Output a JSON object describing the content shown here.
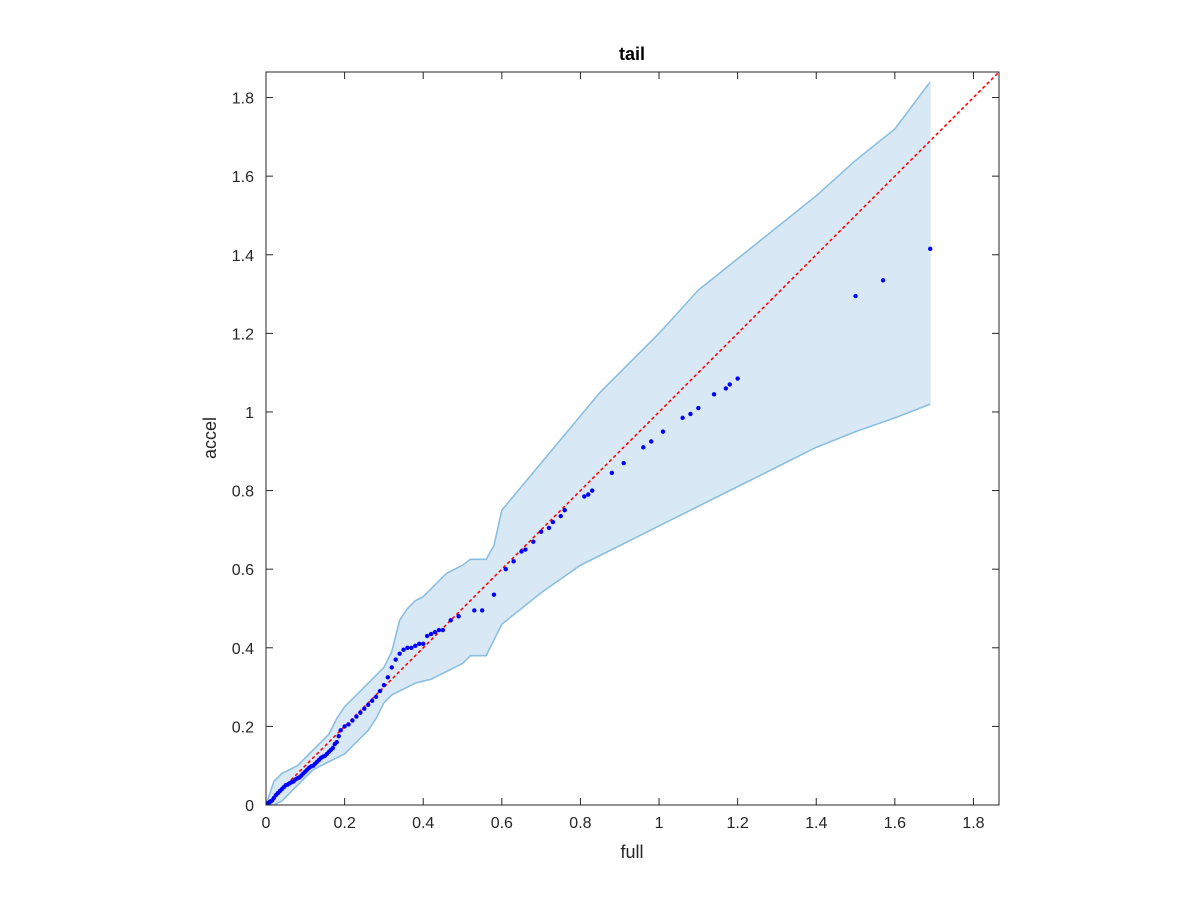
{
  "chart_data": {
    "type": "scatter",
    "title": "tail",
    "xlabel": "full",
    "ylabel": "accel",
    "xlim": [
      0,
      1.865
    ],
    "ylim": [
      0,
      1.865
    ],
    "xticks": [
      0,
      0.2,
      0.4,
      0.6,
      0.8,
      1,
      1.2,
      1.4,
      1.6,
      1.8
    ],
    "yticks": [
      0,
      0.2,
      0.4,
      0.6,
      0.8,
      1,
      1.2,
      1.4,
      1.6,
      1.8
    ],
    "xtick_labels": [
      "0",
      "0.2",
      "0.4",
      "0.6",
      "0.8",
      "1",
      "1.2",
      "1.4",
      "1.6",
      "1.8"
    ],
    "ytick_labels": [
      "0",
      "0.2",
      "0.4",
      "0.6",
      "0.8",
      "1",
      "1.2",
      "1.4",
      "1.6",
      "1.8"
    ],
    "grid": false,
    "box": true,
    "colors": {
      "points": "#0000ff",
      "reference_line": "#ff0000",
      "band_fill": "#d9e8f5",
      "band_edge": "#8bbfe0",
      "axis": "#262626"
    },
    "reference_line": {
      "style": "dotted",
      "from": [
        0,
        0
      ],
      "to": [
        1.865,
        1.865
      ]
    },
    "band": {
      "upper": [
        [
          0,
          0
        ],
        [
          0.01,
          0.03
        ],
        [
          0.02,
          0.06
        ],
        [
          0.04,
          0.08
        ],
        [
          0.06,
          0.09
        ],
        [
          0.08,
          0.1
        ],
        [
          0.1,
          0.12
        ],
        [
          0.12,
          0.14
        ],
        [
          0.14,
          0.16
        ],
        [
          0.16,
          0.18
        ],
        [
          0.18,
          0.22
        ],
        [
          0.2,
          0.25
        ],
        [
          0.22,
          0.27
        ],
        [
          0.24,
          0.29
        ],
        [
          0.26,
          0.31
        ],
        [
          0.28,
          0.33
        ],
        [
          0.3,
          0.35
        ],
        [
          0.32,
          0.39
        ],
        [
          0.34,
          0.47
        ],
        [
          0.36,
          0.5
        ],
        [
          0.38,
          0.52
        ],
        [
          0.4,
          0.53
        ],
        [
          0.42,
          0.55
        ],
        [
          0.44,
          0.57
        ],
        [
          0.46,
          0.59
        ],
        [
          0.48,
          0.6
        ],
        [
          0.5,
          0.61
        ],
        [
          0.52,
          0.625
        ],
        [
          0.56,
          0.625
        ],
        [
          0.58,
          0.66
        ],
        [
          0.6,
          0.75
        ],
        [
          0.65,
          0.81
        ],
        [
          0.7,
          0.87
        ],
        [
          0.75,
          0.93
        ],
        [
          0.8,
          0.99
        ],
        [
          0.85,
          1.05
        ],
        [
          0.9,
          1.1
        ],
        [
          1.0,
          1.2
        ],
        [
          1.1,
          1.31
        ],
        [
          1.2,
          1.39
        ],
        [
          1.3,
          1.47
        ],
        [
          1.4,
          1.55
        ],
        [
          1.5,
          1.64
        ],
        [
          1.6,
          1.72
        ],
        [
          1.69,
          1.84
        ]
      ],
      "lower": [
        [
          0,
          0
        ],
        [
          0.02,
          0
        ],
        [
          0.04,
          0.01
        ],
        [
          0.06,
          0.03
        ],
        [
          0.08,
          0.05
        ],
        [
          0.1,
          0.07
        ],
        [
          0.12,
          0.09
        ],
        [
          0.14,
          0.1
        ],
        [
          0.16,
          0.11
        ],
        [
          0.18,
          0.12
        ],
        [
          0.2,
          0.13
        ],
        [
          0.22,
          0.15
        ],
        [
          0.24,
          0.17
        ],
        [
          0.26,
          0.19
        ],
        [
          0.28,
          0.22
        ],
        [
          0.3,
          0.26
        ],
        [
          0.32,
          0.28
        ],
        [
          0.34,
          0.29
        ],
        [
          0.36,
          0.3
        ],
        [
          0.38,
          0.31
        ],
        [
          0.4,
          0.315
        ],
        [
          0.42,
          0.32
        ],
        [
          0.44,
          0.33
        ],
        [
          0.46,
          0.34
        ],
        [
          0.48,
          0.35
        ],
        [
          0.5,
          0.36
        ],
        [
          0.52,
          0.38
        ],
        [
          0.56,
          0.38
        ],
        [
          0.58,
          0.42
        ],
        [
          0.6,
          0.46
        ],
        [
          0.7,
          0.54
        ],
        [
          0.8,
          0.61
        ],
        [
          0.9,
          0.66
        ],
        [
          1.0,
          0.71
        ],
        [
          1.1,
          0.76
        ],
        [
          1.2,
          0.81
        ],
        [
          1.3,
          0.86
        ],
        [
          1.4,
          0.91
        ],
        [
          1.5,
          0.95
        ],
        [
          1.6,
          0.985
        ],
        [
          1.69,
          1.02
        ]
      ]
    },
    "points": [
      [
        0.002,
        0.002
      ],
      [
        0.004,
        0.004
      ],
      [
        0.006,
        0.005
      ],
      [
        0.008,
        0.006
      ],
      [
        0.01,
        0.008
      ],
      [
        0.013,
        0.01
      ],
      [
        0.016,
        0.012
      ],
      [
        0.02,
        0.018
      ],
      [
        0.025,
        0.025
      ],
      [
        0.03,
        0.03
      ],
      [
        0.035,
        0.035
      ],
      [
        0.04,
        0.04
      ],
      [
        0.045,
        0.045
      ],
      [
        0.05,
        0.05
      ],
      [
        0.055,
        0.052
      ],
      [
        0.06,
        0.055
      ],
      [
        0.065,
        0.058
      ],
      [
        0.07,
        0.06
      ],
      [
        0.075,
        0.065
      ],
      [
        0.08,
        0.068
      ],
      [
        0.085,
        0.07
      ],
      [
        0.09,
        0.075
      ],
      [
        0.095,
        0.08
      ],
      [
        0.1,
        0.085
      ],
      [
        0.105,
        0.09
      ],
      [
        0.11,
        0.095
      ],
      [
        0.115,
        0.098
      ],
      [
        0.12,
        0.1
      ],
      [
        0.125,
        0.105
      ],
      [
        0.13,
        0.11
      ],
      [
        0.135,
        0.115
      ],
      [
        0.14,
        0.12
      ],
      [
        0.145,
        0.123
      ],
      [
        0.15,
        0.125
      ],
      [
        0.155,
        0.13
      ],
      [
        0.16,
        0.135
      ],
      [
        0.165,
        0.14
      ],
      [
        0.17,
        0.145
      ],
      [
        0.175,
        0.155
      ],
      [
        0.18,
        0.16
      ],
      [
        0.185,
        0.175
      ],
      [
        0.19,
        0.19
      ],
      [
        0.2,
        0.2
      ],
      [
        0.21,
        0.205
      ],
      [
        0.22,
        0.215
      ],
      [
        0.23,
        0.225
      ],
      [
        0.24,
        0.235
      ],
      [
        0.25,
        0.245
      ],
      [
        0.26,
        0.255
      ],
      [
        0.27,
        0.265
      ],
      [
        0.28,
        0.275
      ],
      [
        0.29,
        0.29
      ],
      [
        0.3,
        0.305
      ],
      [
        0.31,
        0.325
      ],
      [
        0.32,
        0.35
      ],
      [
        0.33,
        0.37
      ],
      [
        0.34,
        0.385
      ],
      [
        0.35,
        0.395
      ],
      [
        0.36,
        0.4
      ],
      [
        0.37,
        0.4
      ],
      [
        0.38,
        0.405
      ],
      [
        0.39,
        0.41
      ],
      [
        0.4,
        0.41
      ],
      [
        0.41,
        0.43
      ],
      [
        0.42,
        0.435
      ],
      [
        0.43,
        0.44
      ],
      [
        0.44,
        0.445
      ],
      [
        0.45,
        0.445
      ],
      [
        0.47,
        0.47
      ],
      [
        0.49,
        0.48
      ],
      [
        0.53,
        0.495
      ],
      [
        0.55,
        0.495
      ],
      [
        0.58,
        0.535
      ],
      [
        0.61,
        0.6
      ],
      [
        0.63,
        0.62
      ],
      [
        0.65,
        0.645
      ],
      [
        0.66,
        0.65
      ],
      [
        0.68,
        0.67
      ],
      [
        0.7,
        0.695
      ],
      [
        0.72,
        0.705
      ],
      [
        0.73,
        0.72
      ],
      [
        0.75,
        0.735
      ],
      [
        0.76,
        0.75
      ],
      [
        0.81,
        0.785
      ],
      [
        0.82,
        0.79
      ],
      [
        0.83,
        0.8
      ],
      [
        0.88,
        0.845
      ],
      [
        0.91,
        0.87
      ],
      [
        0.96,
        0.91
      ],
      [
        0.98,
        0.925
      ],
      [
        1.01,
        0.95
      ],
      [
        1.06,
        0.985
      ],
      [
        1.08,
        0.995
      ],
      [
        1.1,
        1.01
      ],
      [
        1.14,
        1.045
      ],
      [
        1.17,
        1.06
      ],
      [
        1.18,
        1.07
      ],
      [
        1.2,
        1.085
      ],
      [
        1.5,
        1.295
      ],
      [
        1.57,
        1.335
      ],
      [
        1.69,
        1.415
      ]
    ]
  }
}
